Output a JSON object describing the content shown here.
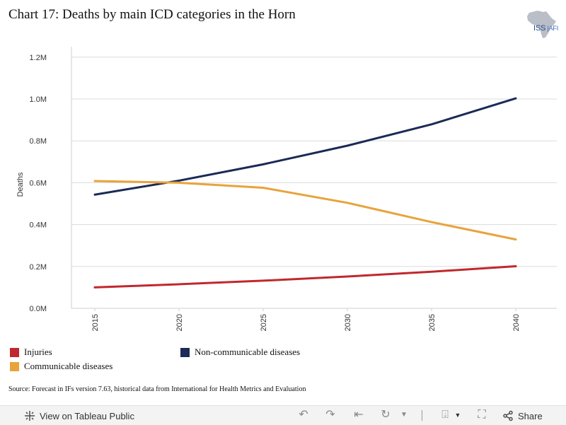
{
  "header": {
    "title": "Chart 17: Deaths by main ICD categories in the Horn",
    "logo_main": "ISS",
    "logo_sub": "AFI"
  },
  "chart_data": {
    "type": "line",
    "title": "Chart 17: Deaths by main ICD categories in the Horn",
    "xlabel": "",
    "ylabel": "Deaths",
    "x": [
      2015,
      2020,
      2025,
      2030,
      2035,
      2040
    ],
    "ylim": [
      0,
      1.25
    ],
    "y_unit": "millions",
    "y_ticks": [
      "0.0M",
      "0.2M",
      "0.4M",
      "0.6M",
      "0.8M",
      "1.0M",
      "1.2M"
    ],
    "x_ticks": [
      "2015",
      "2020",
      "2025",
      "2030",
      "2035",
      "2040"
    ],
    "grid": true,
    "series": [
      {
        "name": "Injuries",
        "color": "#c0282d",
        "values": [
          0.1,
          0.115,
          0.132,
          0.152,
          0.175,
          0.201
        ]
      },
      {
        "name": "Non-communicable diseases",
        "color": "#1b2a56",
        "values": [
          0.543,
          0.61,
          0.688,
          0.777,
          0.879,
          1.003
        ]
      },
      {
        "name": "Communicable diseases",
        "color": "#e8a33b",
        "values": [
          0.608,
          0.6,
          0.576,
          0.504,
          0.412,
          0.329
        ]
      }
    ],
    "legend_position": "bottom"
  },
  "legend": {
    "items": [
      {
        "label": "Injuries",
        "color": "#c0282d"
      },
      {
        "label": "Non-communicable diseases",
        "color": "#1b2a56"
      },
      {
        "label": "Communicable diseases",
        "color": "#e8a33b"
      }
    ]
  },
  "source": "Source: Forecast in IFs version 7.63, historical data from International for Health Metrics and Evaluation",
  "footer": {
    "view_label": "View on Tableau Public",
    "share_label": "Share"
  }
}
